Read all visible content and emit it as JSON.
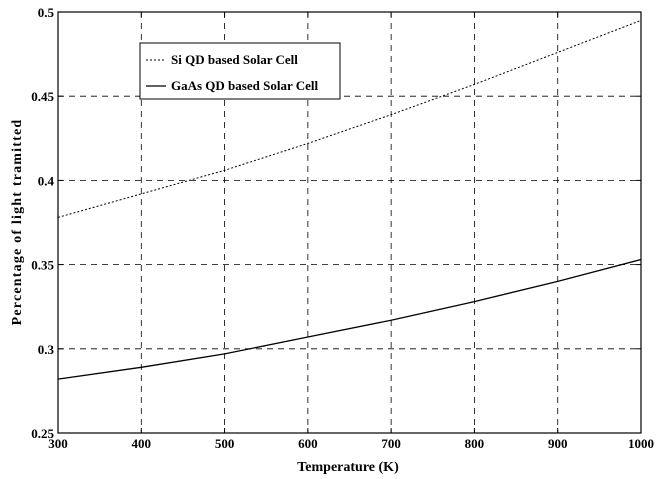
{
  "chart_data": {
    "type": "line",
    "xlabel": "Temperature (K)",
    "ylabel": "Percentage of light tramitted",
    "xlim": [
      300,
      1000
    ],
    "ylim": [
      0.25,
      0.5
    ],
    "x_ticks": [
      300,
      400,
      500,
      600,
      700,
      800,
      900,
      1000
    ],
    "y_ticks": [
      0.25,
      0.3,
      0.35,
      0.4,
      0.45,
      0.5
    ],
    "x_tick_labels": [
      "300",
      "400",
      "500",
      "600",
      "700",
      "800",
      "900",
      "1000"
    ],
    "y_tick_labels": [
      "0.25",
      "0.3",
      "0.35",
      "0.4",
      "0.45",
      "0.5"
    ],
    "grid": true,
    "legend_position": "top-left",
    "series": [
      {
        "name": "Si QD based Solar Cell",
        "line_style": "dotted",
        "color": "#000000",
        "x": [
          300,
          400,
          500,
          600,
          700,
          800,
          900,
          1000
        ],
        "y": [
          0.378,
          0.392,
          0.406,
          0.422,
          0.439,
          0.457,
          0.476,
          0.495
        ]
      },
      {
        "name": "GaAs QD based Solar Cell",
        "line_style": "solid",
        "color": "#000000",
        "x": [
          300,
          400,
          500,
          600,
          700,
          800,
          900,
          1000
        ],
        "y": [
          0.282,
          0.289,
          0.297,
          0.307,
          0.317,
          0.328,
          0.34,
          0.353
        ]
      }
    ]
  }
}
